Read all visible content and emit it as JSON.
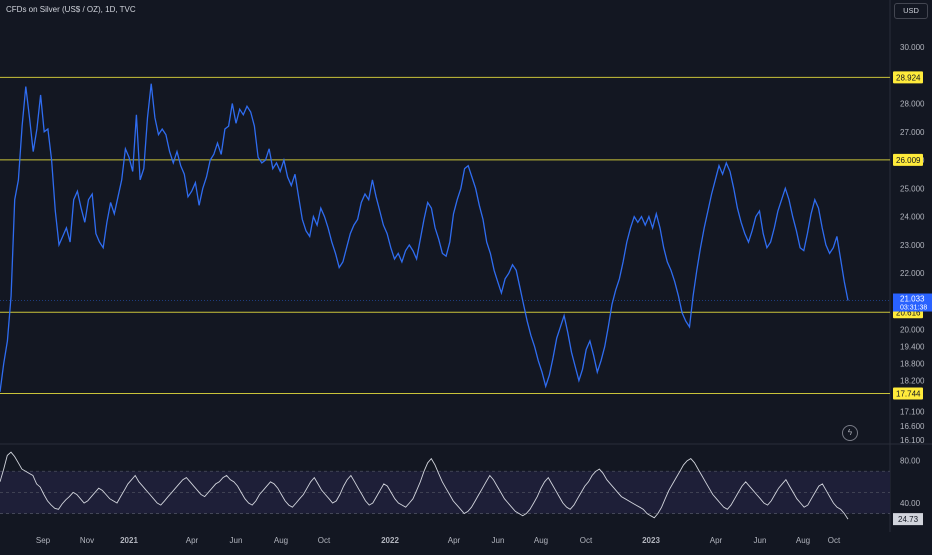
{
  "header": {
    "title": "CFDs on Silver (US$ / OZ), 1D, TVC",
    "currency": "USD"
  },
  "colors": {
    "background": "#131722",
    "price_line": "#2f6cf0",
    "level_line": "#c9c33a",
    "level_label_bg": "#ffeb3b",
    "last_price_bg": "#2962ff",
    "rsi_line": "#d1d4dc",
    "rsi_band": "#1e1f38",
    "axis_text": "#b2b5be"
  },
  "chart_data": [
    {
      "type": "line",
      "ylim": [
        16.1,
        30.6
      ],
      "y_ticks": [
        "30.000",
        "28.000",
        "27.000",
        "26.000",
        "25.000",
        "24.000",
        "23.000",
        "22.000",
        "20.000",
        "19.400",
        "18.800",
        "18.200",
        "17.100",
        "16.600",
        "16.100"
      ],
      "x_tick_labels": [
        "Sep",
        "Nov",
        "2021",
        "Apr",
        "Jun",
        "Aug",
        "Oct",
        "2022",
        "Apr",
        "Jun",
        "Aug",
        "Oct",
        "2023",
        "Apr",
        "Jun",
        "Aug",
        "Oct"
      ],
      "horizontal_levels": [
        "28.924",
        "26.009",
        "20.616",
        "17.744"
      ],
      "last_price": "21.033",
      "countdown": "03:31:38",
      "series": [
        {
          "values": [
            17.8,
            18.8,
            19.6,
            21.2,
            24.6,
            25.3,
            27.2,
            28.6,
            27.5,
            26.3,
            27.1,
            28.3,
            27.0,
            27.1,
            26.0,
            24.2,
            23.0,
            23.3,
            23.6,
            23.1,
            24.6,
            24.9,
            24.3,
            23.8,
            24.6,
            24.8,
            23.4,
            23.1,
            22.9,
            23.8,
            24.5,
            24.1,
            24.7,
            25.3,
            26.4,
            26.1,
            25.6,
            27.6,
            25.3,
            25.7,
            27.5,
            28.7,
            27.5,
            26.9,
            27.1,
            26.9,
            26.3,
            25.9,
            26.3,
            25.8,
            25.5,
            24.7,
            24.9,
            25.2,
            24.4,
            25.0,
            25.4,
            26.0,
            26.2,
            26.6,
            26.2,
            27.1,
            27.2,
            28.0,
            27.3,
            27.8,
            27.6,
            27.9,
            27.7,
            27.2,
            26.1,
            25.9,
            26.0,
            26.4,
            25.7,
            25.9,
            25.6,
            26.0,
            25.4,
            25.1,
            25.5,
            24.7,
            23.9,
            23.5,
            23.3,
            24.0,
            23.7,
            24.3,
            24.0,
            23.6,
            23.1,
            22.7,
            22.2,
            22.4,
            22.9,
            23.4,
            23.7,
            23.9,
            24.5,
            24.8,
            24.6,
            25.3,
            24.7,
            24.2,
            23.7,
            23.4,
            22.9,
            22.5,
            22.7,
            22.4,
            22.8,
            23.0,
            22.8,
            22.5,
            23.2,
            23.9,
            24.5,
            24.3,
            23.6,
            23.2,
            22.7,
            22.6,
            23.1,
            24.1,
            24.6,
            25.0,
            25.7,
            25.8,
            25.4,
            25.0,
            24.4,
            23.9,
            23.1,
            22.7,
            22.1,
            21.7,
            21.3,
            21.8,
            22.0,
            22.3,
            22.1,
            21.5,
            20.9,
            20.3,
            19.8,
            19.4,
            18.9,
            18.5,
            18.0,
            18.4,
            19.0,
            19.7,
            20.1,
            20.5,
            19.9,
            19.2,
            18.7,
            18.2,
            18.6,
            19.3,
            19.6,
            19.1,
            18.5,
            18.9,
            19.4,
            20.1,
            20.9,
            21.4,
            21.8,
            22.4,
            23.1,
            23.6,
            24.0,
            23.8,
            24.0,
            23.7,
            24.0,
            23.6,
            24.1,
            23.6,
            22.9,
            22.4,
            22.1,
            21.7,
            21.2,
            20.6,
            20.3,
            20.1,
            21.2,
            22.1,
            22.9,
            23.6,
            24.2,
            24.8,
            25.3,
            25.8,
            25.5,
            25.9,
            25.6,
            25.0,
            24.3,
            23.8,
            23.4,
            23.1,
            23.5,
            24.0,
            24.2,
            23.4,
            22.9,
            23.1,
            23.6,
            24.2,
            24.6,
            25.0,
            24.6,
            24.0,
            23.5,
            22.9,
            22.8,
            23.4,
            24.1,
            24.6,
            24.3,
            23.6,
            23.0,
            22.7,
            22.9,
            23.3,
            22.5,
            21.7,
            21.033
          ]
        }
      ]
    },
    {
      "type": "line",
      "title": "",
      "ylim": [
        22,
        92
      ],
      "y_ticks": [
        "80.00",
        "40.00"
      ],
      "band": [
        30,
        70
      ],
      "mid_line": 50,
      "last_value": "24.73",
      "series": [
        {
          "values": [
            60,
            72,
            85,
            88,
            84,
            78,
            72,
            70,
            68,
            66,
            58,
            55,
            48,
            42,
            38,
            35,
            34,
            39,
            43,
            46,
            50,
            48,
            44,
            40,
            42,
            46,
            50,
            54,
            52,
            48,
            44,
            42,
            40,
            46,
            52,
            58,
            62,
            66,
            60,
            56,
            52,
            48,
            44,
            40,
            38,
            42,
            46,
            50,
            54,
            58,
            62,
            64,
            60,
            56,
            52,
            48,
            46,
            50,
            54,
            58,
            60,
            64,
            66,
            62,
            60,
            56,
            50,
            44,
            40,
            38,
            42,
            48,
            52,
            56,
            60,
            58,
            54,
            48,
            42,
            38,
            36,
            40,
            44,
            48,
            54,
            60,
            64,
            58,
            52,
            48,
            44,
            40,
            42,
            48,
            56,
            62,
            66,
            60,
            54,
            48,
            42,
            38,
            40,
            46,
            52,
            58,
            56,
            50,
            44,
            40,
            38,
            36,
            40,
            44,
            52,
            60,
            70,
            78,
            82,
            76,
            68,
            60,
            54,
            48,
            42,
            38,
            34,
            30,
            32,
            36,
            42,
            48,
            54,
            60,
            66,
            62,
            56,
            50,
            44,
            40,
            36,
            32,
            30,
            28,
            30,
            34,
            40,
            46,
            54,
            60,
            64,
            58,
            52,
            46,
            40,
            36,
            34,
            38,
            44,
            50,
            56,
            60,
            66,
            70,
            72,
            68,
            62,
            58,
            54,
            50,
            46,
            44,
            42,
            40,
            38,
            36,
            34,
            30,
            28,
            26,
            30,
            36,
            44,
            52,
            58,
            64,
            70,
            76,
            80,
            82,
            78,
            72,
            66,
            60,
            54,
            48,
            44,
            40,
            36,
            34,
            38,
            44,
            50,
            56,
            60,
            56,
            52,
            48,
            44,
            40,
            38,
            42,
            48,
            54,
            58,
            62,
            56,
            50,
            44,
            40,
            36,
            38,
            44,
            50,
            56,
            58,
            52,
            46,
            40,
            36,
            34,
            30,
            24.73
          ]
        }
      ]
    }
  ]
}
